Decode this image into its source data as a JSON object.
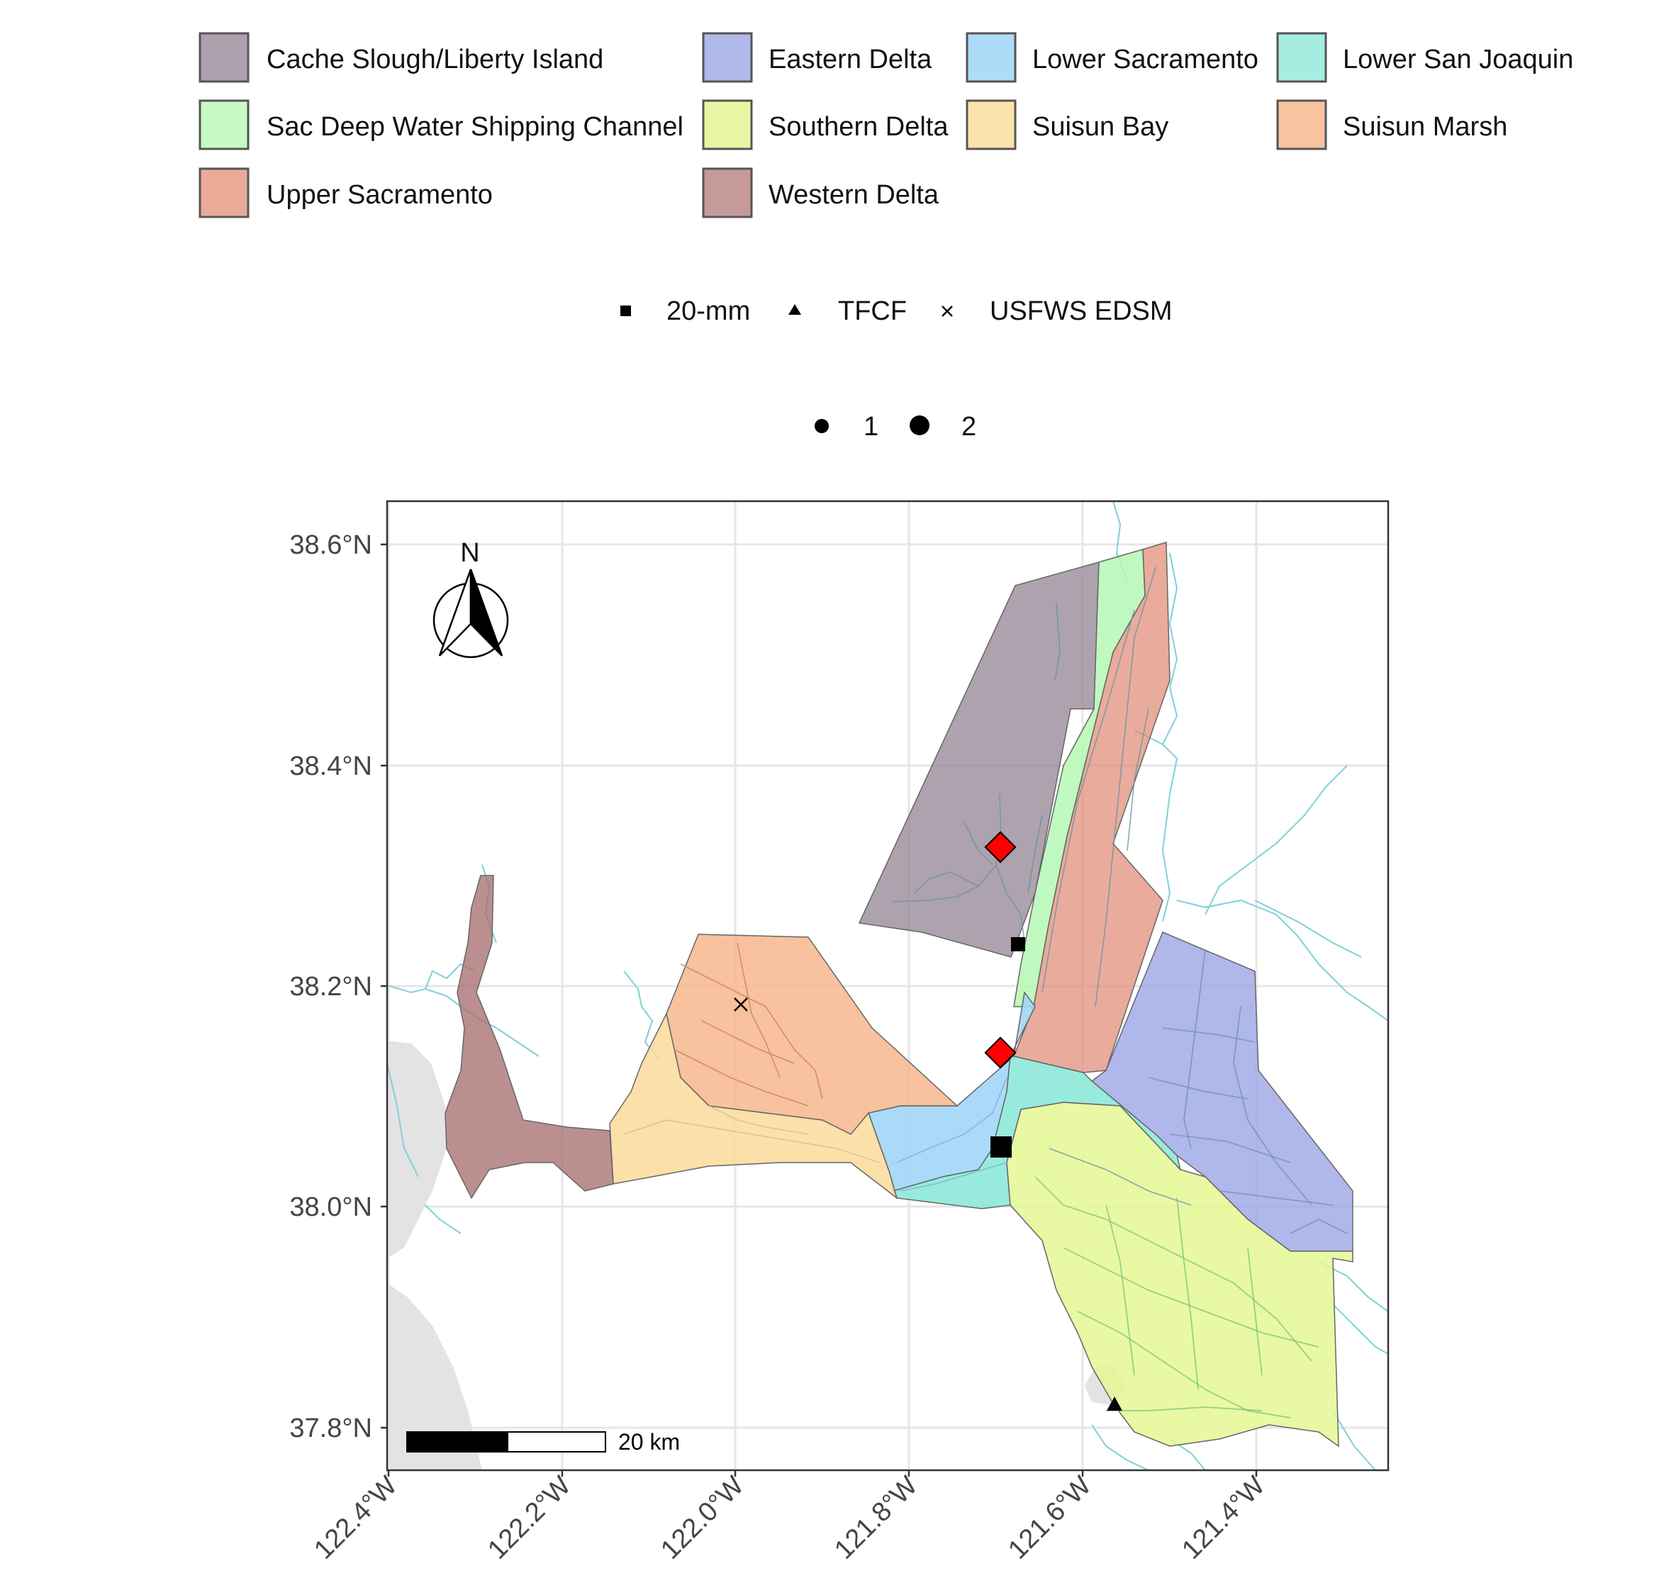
{
  "region_legend": {
    "items": [
      {
        "label": "Cache Slough/Liberty Island",
        "color": "#ada1ae"
      },
      {
        "label": "Eastern Delta",
        "color": "#b1b8ea"
      },
      {
        "label": "Lower Sacramento",
        "color": "#addcf9"
      },
      {
        "label": "Lower San Joaquin",
        "color": "#a5ede0"
      },
      {
        "label": "Sac Deep Water Shipping Channel",
        "color": "#c6fbc6"
      },
      {
        "label": "Southern Delta",
        "color": "#e8f7a4"
      },
      {
        "label": "Suisun Bay",
        "color": "#fbe2ad"
      },
      {
        "label": "Suisun Marsh",
        "color": "#f8c39e"
      },
      {
        "label": "Upper Sacramento",
        "color": "#e9ab98"
      },
      {
        "label": "Western Delta",
        "color": "#c79a9a"
      }
    ]
  },
  "survey_legend": {
    "items": [
      {
        "label": "20-mm",
        "shape": "square"
      },
      {
        "label": "TFCF",
        "shape": "triangle"
      },
      {
        "label": "USFWS EDSM",
        "shape": "cross"
      }
    ]
  },
  "size_legend": {
    "items": [
      {
        "label": "1",
        "size": 1
      },
      {
        "label": "2",
        "size": 2
      }
    ]
  },
  "axes": {
    "y_ticks": [
      {
        "value": 38.6,
        "label": "38.6°N"
      },
      {
        "value": 38.4,
        "label": "38.4°N"
      },
      {
        "value": 38.2,
        "label": "38.2°N"
      },
      {
        "value": 38.0,
        "label": "38.0°N"
      },
      {
        "value": 37.8,
        "label": "37.8°N"
      }
    ],
    "x_ticks": [
      {
        "value": -122.4,
        "label": "122.4°W"
      },
      {
        "value": -122.2,
        "label": "122.2°W"
      },
      {
        "value": -122.0,
        "label": "122.0°W"
      },
      {
        "value": -121.8,
        "label": "121.8°W"
      },
      {
        "value": -121.6,
        "label": "121.6°W"
      },
      {
        "value": -121.4,
        "label": "121.4°W"
      }
    ]
  },
  "north_arrow": {
    "label": "N"
  },
  "scale_bar": {
    "label": "20 km"
  },
  "points": [
    {
      "lon": -121.695,
      "lat": 38.327,
      "type": "diamond",
      "color": "#ff0000"
    },
    {
      "lon": -121.695,
      "lat": 38.14,
      "type": "diamond",
      "color": "#ff0000"
    },
    {
      "lon": -121.672,
      "lat": 38.237,
      "survey": "20-mm",
      "size": 1
    },
    {
      "lon": -121.695,
      "lat": 38.053,
      "survey": "20-mm",
      "size": 2
    },
    {
      "lon": -121.562,
      "lat": 37.815,
      "survey": "TFCF",
      "size": 1
    },
    {
      "lon": -121.993,
      "lat": 38.183,
      "survey": "USFWS EDSM",
      "size": 1
    }
  ]
}
